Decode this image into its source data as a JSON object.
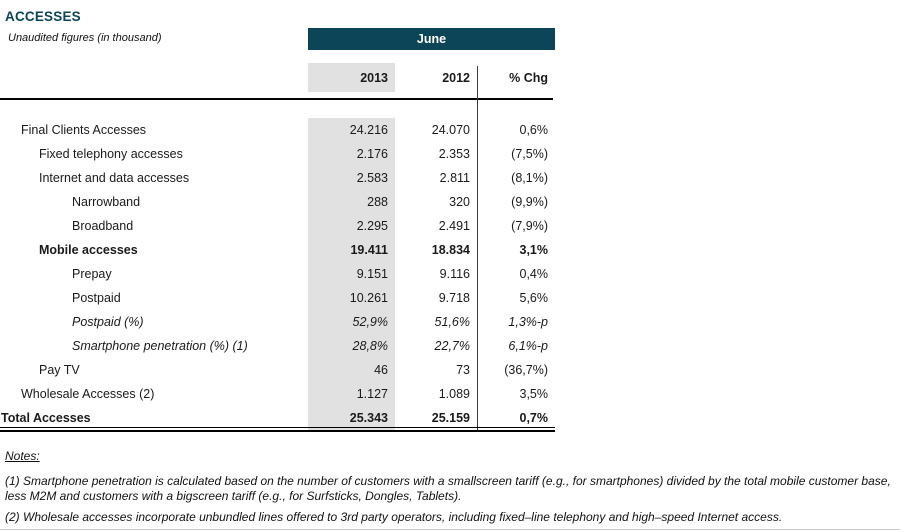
{
  "title": "ACCESSES",
  "subtitle": "Unaudited figures (in thousand)",
  "period_header": "June",
  "columns": {
    "y2013": "2013",
    "y2012": "2012",
    "chg": "% Chg"
  },
  "colors": {
    "accent": "#0c4558",
    "colgray": "#e1e1e1",
    "divider": "#3a3a3a",
    "faint": "#c8c8c8"
  },
  "table": {
    "rows": [
      {
        "label": "Final Clients Accesses",
        "y2013": "24.216",
        "y2012": "24.070",
        "chg": "0,6%"
      },
      {
        "label": "Fixed telephony accesses",
        "y2013": "2.176",
        "y2012": "2.353",
        "chg": "(7,5%)"
      },
      {
        "label": "Internet and data accesses",
        "y2013": "2.583",
        "y2012": "2.811",
        "chg": "(8,1%)"
      },
      {
        "label": "Narrowband",
        "y2013": "288",
        "y2012": "320",
        "chg": "(9,9%)"
      },
      {
        "label": "Broadband",
        "y2013": "2.295",
        "y2012": "2.491",
        "chg": "(7,9%)"
      },
      {
        "label": "Mobile accesses",
        "y2013": "19.411",
        "y2012": "18.834",
        "chg": "3,1%"
      },
      {
        "label": "Prepay",
        "y2013": "9.151",
        "y2012": "9.116",
        "chg": "0,4%"
      },
      {
        "label": "Postpaid",
        "y2013": "10.261",
        "y2012": "9.718",
        "chg": "5,6%"
      },
      {
        "label": "Postpaid (%)",
        "y2013": "52,9%",
        "y2012": "51,6%",
        "chg": "1,3%-p"
      },
      {
        "label": "Smartphone penetration (%) (1)",
        "y2013": "28,8%",
        "y2012": "22,7%",
        "chg": "6,1%-p"
      },
      {
        "label": "Pay TV",
        "y2013": "46",
        "y2012": "73",
        "chg": "(36,7%)"
      },
      {
        "label": "Wholesale Accesses (2)",
        "y2013": "1.127",
        "y2012": "1.089",
        "chg": "3,5%"
      },
      {
        "label": "Total Accesses",
        "y2013": "25.343",
        "y2012": "25.159",
        "chg": "0,7%"
      }
    ]
  },
  "notes": {
    "heading": "Notes:",
    "items": [
      "(1) Smartphone penetration is calculated based on the number of customers with a smallscreen tariff (e.g., for smartphones) divided by the total mobile customer base, less M2M and customers with a bigscreen tariff (e.g., for Surfsticks, Dongles, Tablets).",
      "(2) Wholesale accesses incorporate unbundled lines offered to 3rd party operators, including fixed–line telephony and high–speed Internet access."
    ]
  }
}
